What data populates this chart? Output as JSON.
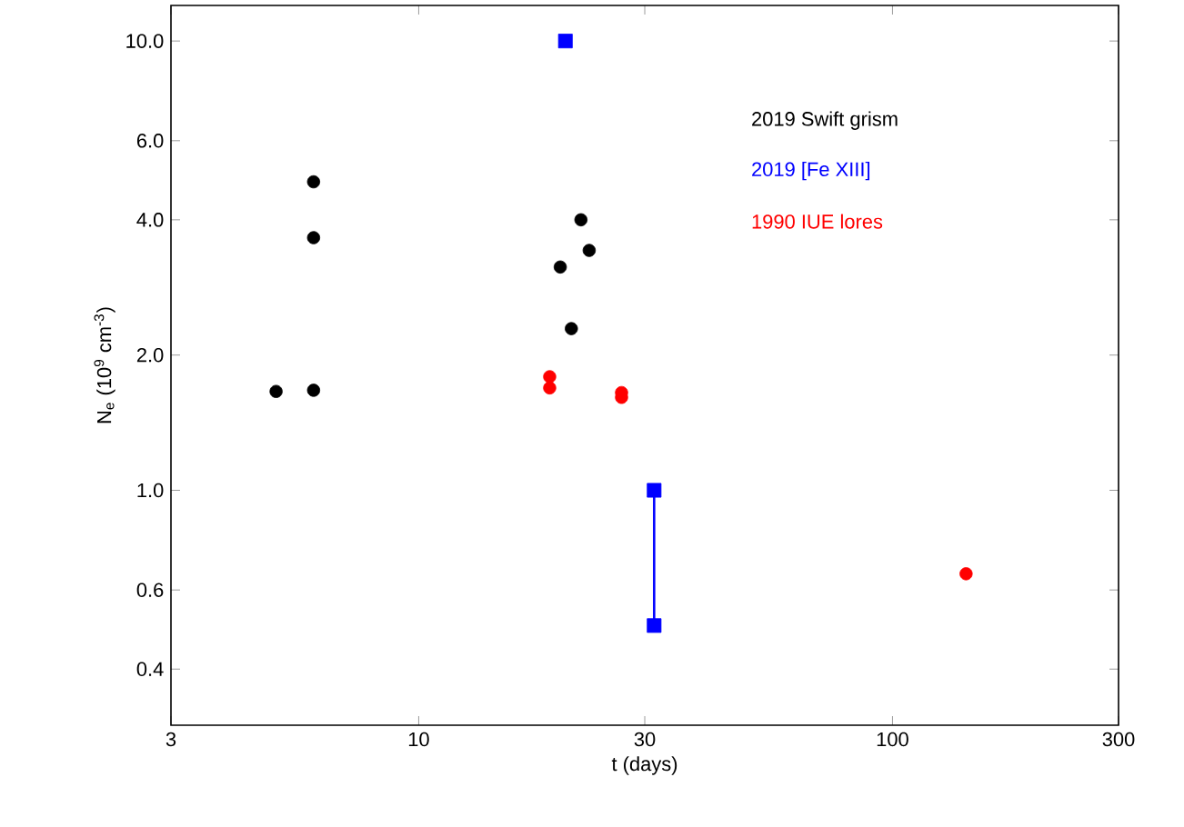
{
  "chart_data": {
    "type": "scatter",
    "xlabel": "t (days)",
    "ylabel": "N$_{e}$ (10$^{9}$ cm$^{-3}$)",
    "log": "xy",
    "xlim": [
      3,
      300
    ],
    "ylim": [
      0.3,
      12
    ],
    "xticks": [
      3,
      10,
      30,
      100,
      300
    ],
    "yticks": [
      {
        "value": 0.4,
        "label": "0.4"
      },
      {
        "value": 0.6,
        "label": "0.6"
      },
      {
        "value": 1,
        "label": "1.0"
      },
      {
        "value": 2,
        "label": "2.0"
      },
      {
        "value": 4,
        "label": "4.0"
      },
      {
        "value": 6,
        "label": "6.0"
      },
      {
        "value": 10,
        "label": "10.0"
      }
    ],
    "grid": false,
    "legend": "top right",
    "series": [
      {
        "name": "2019 Swift grism",
        "color": "#000000",
        "marker": "circle",
        "x": [
          5.0,
          6.0,
          6.0,
          6.0,
          19.9,
          21.0,
          22.0,
          22.9
        ],
        "values": [
          1.66,
          1.67,
          4.86,
          3.65,
          3.14,
          2.29,
          4.0,
          3.42
        ]
      },
      {
        "name": "2019 [Fe XIII]",
        "color": "#0000ff",
        "marker": "square",
        "x": [
          20.4,
          31.4,
          31.4
        ],
        "values": [
          10,
          1.0,
          0.5
        ]
      },
      {
        "type": "line",
        "color": "#0000ff",
        "marker": "none",
        "x": [
          31.4,
          31.4
        ],
        "values": [
          1.0,
          0.5
        ]
      },
      {
        "name": "1990 IUE lores",
        "color": "#ff0000",
        "marker": "circle",
        "x": [
          18.9,
          18.9,
          26.8,
          26.8,
          143
        ],
        "values": [
          1.79,
          1.69,
          1.65,
          1.61,
          0.652
        ]
      }
    ]
  }
}
